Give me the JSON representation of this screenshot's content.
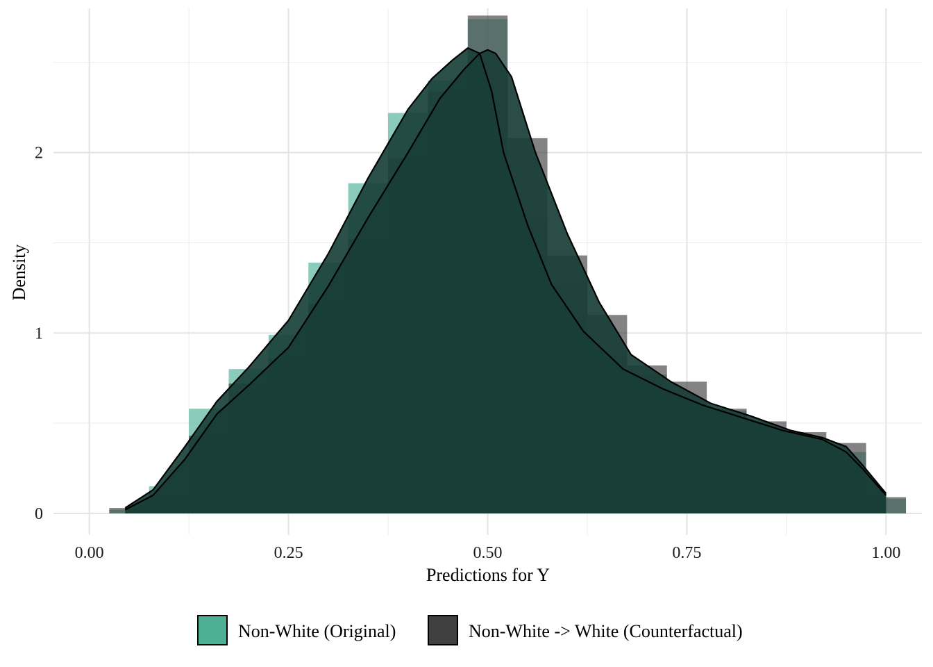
{
  "chart_data": {
    "type": "histogram-density",
    "title": "",
    "xlabel": "Predictions for Y",
    "ylabel": "Density",
    "xlim": [
      -0.045,
      1.045
    ],
    "ylim": [
      -0.12,
      2.8
    ],
    "x_ticks": [
      0.0,
      0.25,
      0.5,
      0.75,
      1.0
    ],
    "x_tick_labels": [
      "0.00",
      "0.25",
      "0.50",
      "0.75",
      "1.00"
    ],
    "y_ticks": [
      0,
      1,
      2
    ],
    "y_tick_labels": [
      "0",
      "1",
      "2"
    ],
    "grid": true,
    "legend_position": "bottom",
    "bin_width": 0.05,
    "bin_centers": [
      0.05,
      0.1,
      0.15,
      0.2,
      0.25,
      0.3,
      0.35,
      0.4,
      0.45,
      0.5,
      0.55,
      0.6,
      0.65,
      0.7,
      0.75,
      0.8,
      0.85,
      0.9,
      0.95,
      1.0
    ],
    "series": [
      {
        "name": "Non-White (Original)",
        "color": "#4DAF96",
        "hist": [
          0.02,
          0.15,
          0.58,
          0.8,
          0.99,
          1.39,
          1.83,
          2.22,
          2.4,
          2.74,
          1.64,
          1.27,
          0.88,
          0.77,
          0.6,
          0.57,
          0.44,
          0.42,
          0.34,
          0.08
        ],
        "density_x": [
          0.045,
          0.08,
          0.12,
          0.16,
          0.2,
          0.25,
          0.3,
          0.35,
          0.4,
          0.43,
          0.455,
          0.475,
          0.49,
          0.505,
          0.52,
          0.55,
          0.58,
          0.62,
          0.67,
          0.72,
          0.77,
          0.82,
          0.87,
          0.92,
          0.95,
          0.97,
          1.0
        ],
        "density_y": [
          0.03,
          0.13,
          0.37,
          0.62,
          0.81,
          1.07,
          1.44,
          1.86,
          2.24,
          2.41,
          2.51,
          2.58,
          2.55,
          2.34,
          2.0,
          1.6,
          1.27,
          1.01,
          0.8,
          0.69,
          0.6,
          0.53,
          0.46,
          0.41,
          0.34,
          0.25,
          0.1
        ]
      },
      {
        "name": "Non-White -> White (Counterfactual)",
        "color": "#404040",
        "hist": [
          0.03,
          0.11,
          0.43,
          0.72,
          0.86,
          1.16,
          1.52,
          1.97,
          2.34,
          2.76,
          2.08,
          1.43,
          1.1,
          0.82,
          0.73,
          0.58,
          0.51,
          0.45,
          0.39,
          0.09
        ],
        "density_x": [
          0.045,
          0.08,
          0.12,
          0.16,
          0.2,
          0.25,
          0.3,
          0.35,
          0.4,
          0.44,
          0.47,
          0.49,
          0.5,
          0.51,
          0.53,
          0.56,
          0.6,
          0.64,
          0.68,
          0.73,
          0.78,
          0.83,
          0.88,
          0.92,
          0.95,
          0.97,
          1.0
        ],
        "density_y": [
          0.02,
          0.1,
          0.3,
          0.55,
          0.71,
          0.92,
          1.26,
          1.64,
          2.0,
          2.3,
          2.46,
          2.55,
          2.57,
          2.55,
          2.42,
          2.0,
          1.55,
          1.17,
          0.88,
          0.73,
          0.61,
          0.54,
          0.46,
          0.42,
          0.37,
          0.27,
          0.11
        ]
      }
    ]
  }
}
